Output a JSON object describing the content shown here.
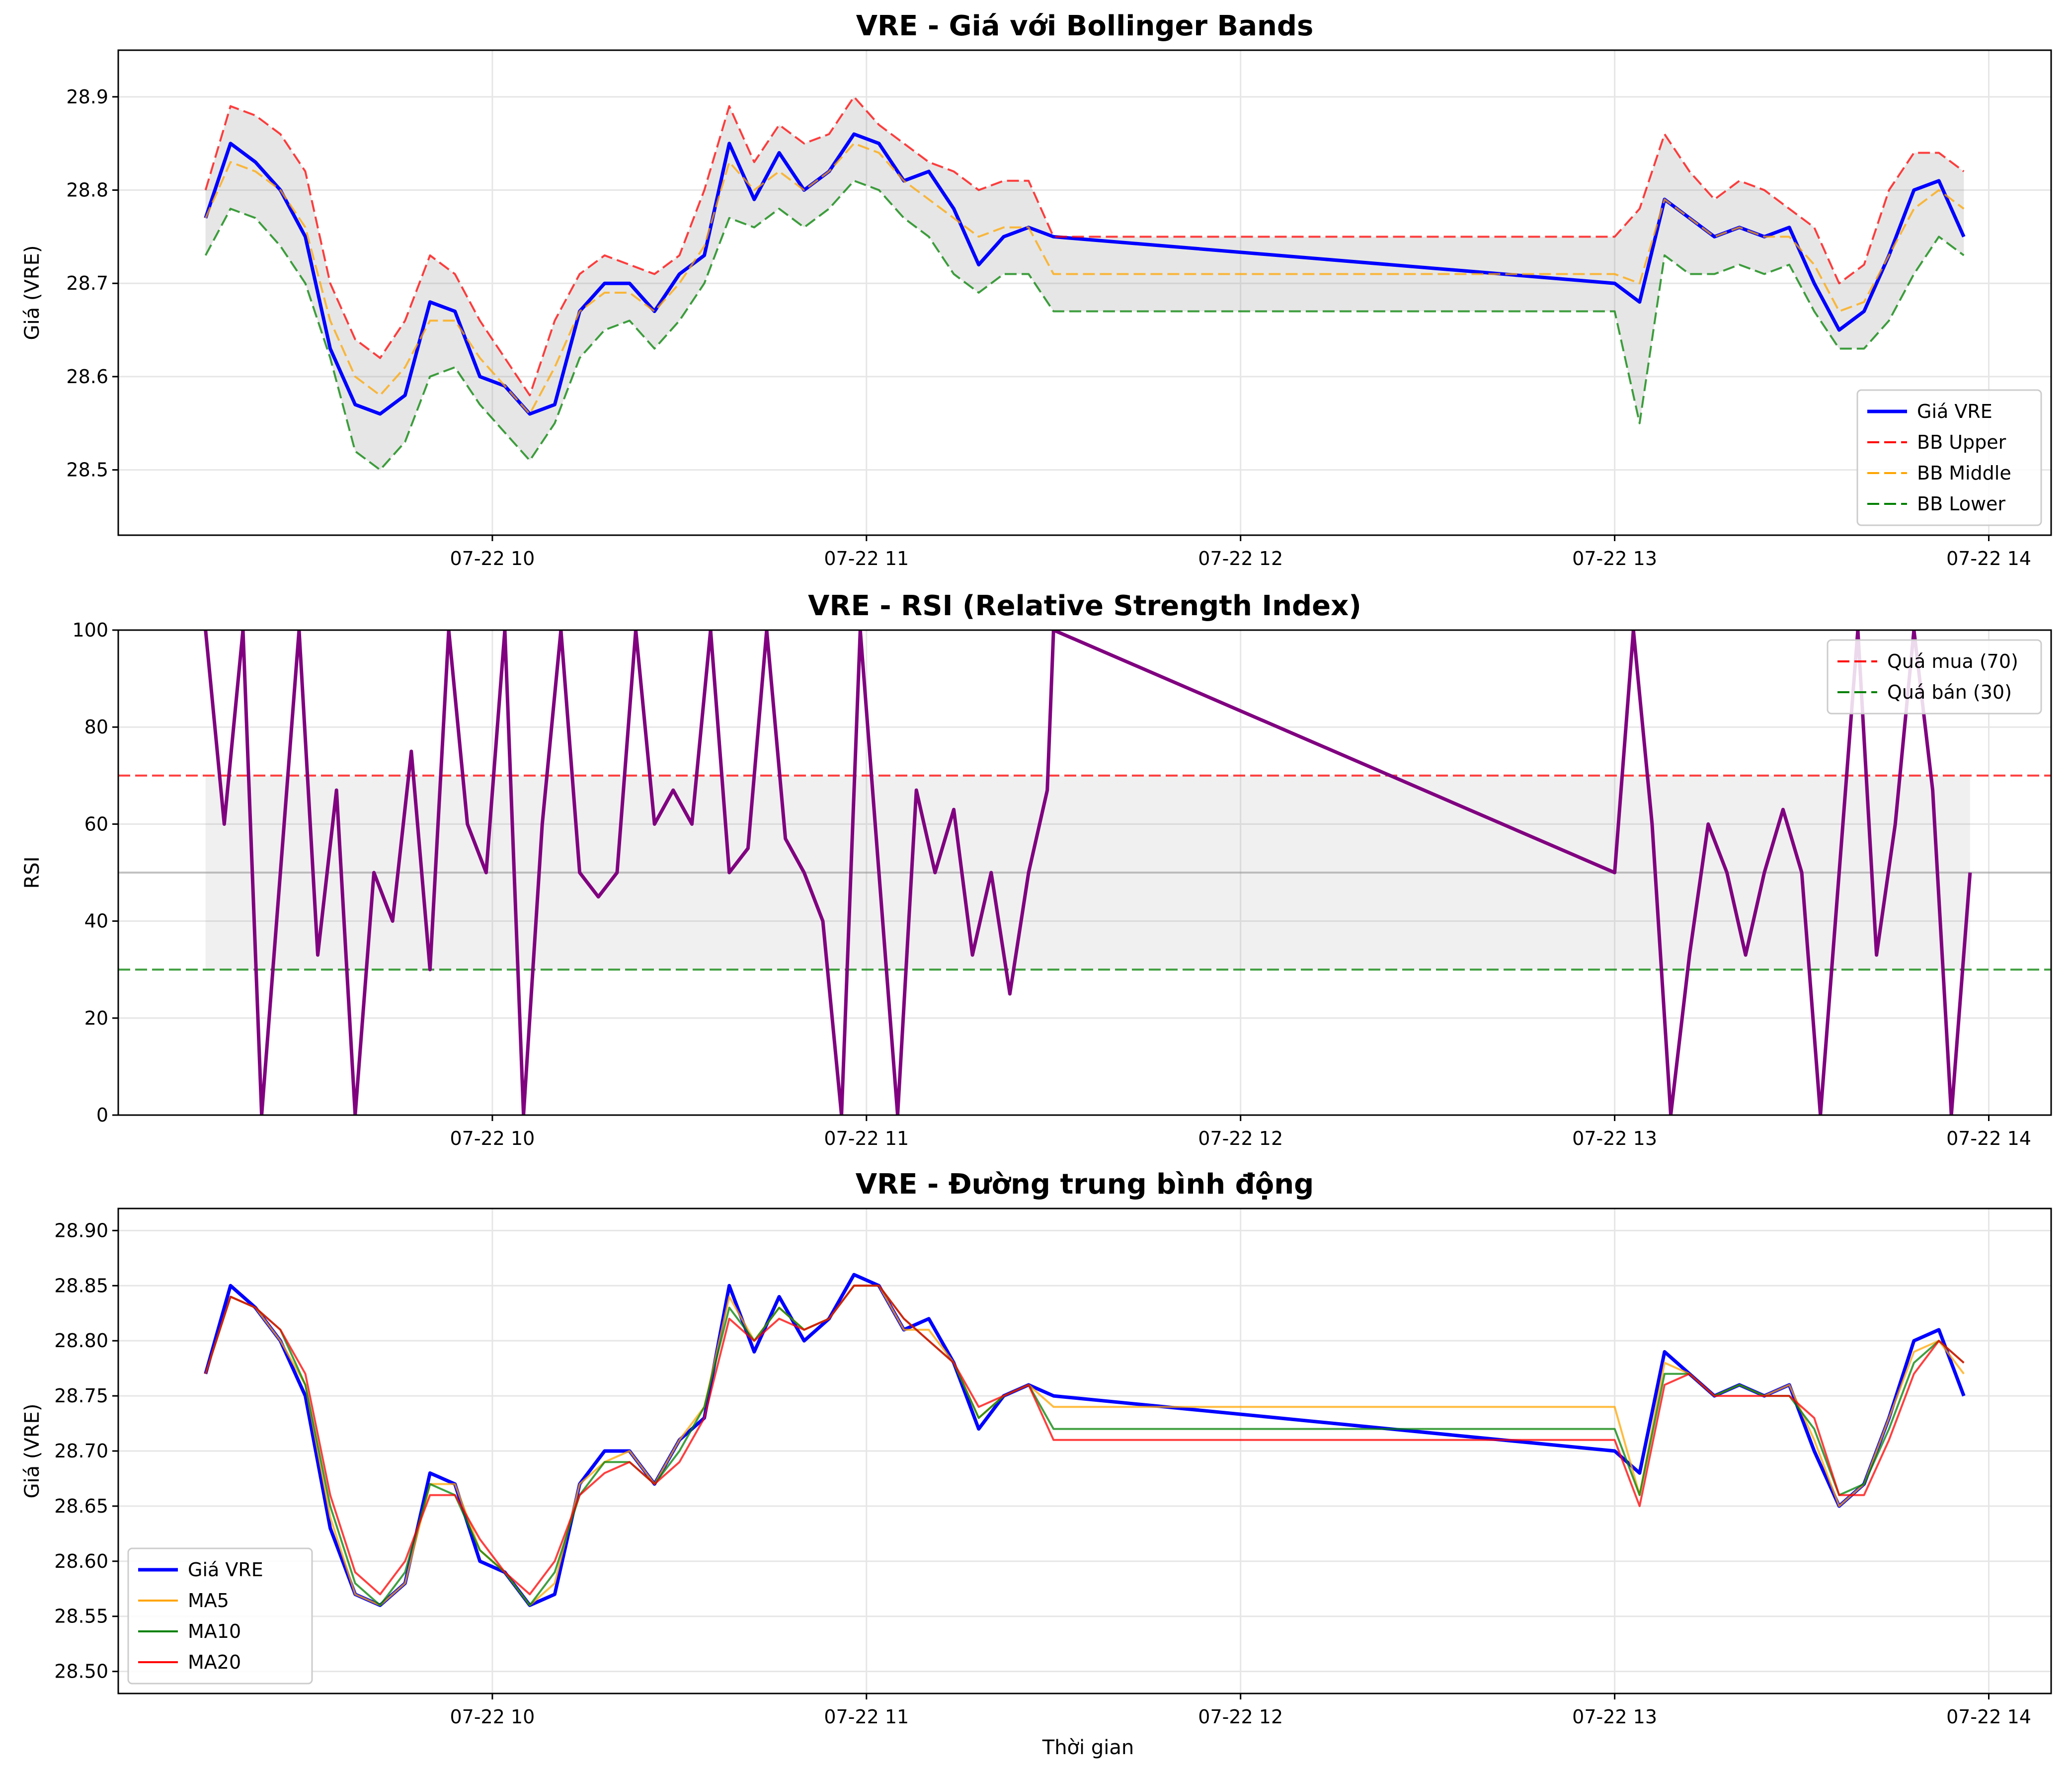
{
  "figure": {
    "xlabel": "Thời gian"
  },
  "chart_data": [
    {
      "type": "line",
      "title": "VRE - Giá với Bollinger Bands",
      "xlabel": "",
      "ylabel": "Giá (VRE)",
      "xlim": [
        "07-22 09:00",
        "07-22 14:10"
      ],
      "ylim": [
        28.43,
        28.95
      ],
      "x_ticks": [
        "07-22 10",
        "07-22 11",
        "07-22 12",
        "07-22 13",
        "07-22 14"
      ],
      "y_ticks": [
        28.5,
        28.6,
        28.7,
        28.8,
        28.9
      ],
      "grid": true,
      "legend_position": "lower right",
      "band_fill": "between BB Upper and BB Lower, gray",
      "x": [
        "09:14",
        "09:18",
        "09:22",
        "09:26",
        "09:30",
        "09:34",
        "09:38",
        "09:42",
        "09:46",
        "09:50",
        "09:54",
        "09:58",
        "10:02",
        "10:06",
        "10:10",
        "10:14",
        "10:18",
        "10:22",
        "10:26",
        "10:30",
        "10:34",
        "10:38",
        "10:42",
        "10:46",
        "10:50",
        "10:54",
        "10:58",
        "11:02",
        "11:06",
        "11:10",
        "11:14",
        "11:18",
        "11:22",
        "11:26",
        "11:30",
        "13:00",
        "13:04",
        "13:08",
        "13:12",
        "13:16",
        "13:20",
        "13:24",
        "13:28",
        "13:32",
        "13:36",
        "13:40",
        "13:44",
        "13:48",
        "13:52",
        "13:56"
      ],
      "series": [
        {
          "name": "Giá VRE",
          "color": "#0000ff",
          "style": "solid",
          "values": [
            28.77,
            28.85,
            28.83,
            28.8,
            28.75,
            28.63,
            28.57,
            28.56,
            28.58,
            28.68,
            28.67,
            28.6,
            28.59,
            28.56,
            28.57,
            28.67,
            28.7,
            28.7,
            28.67,
            28.71,
            28.73,
            28.85,
            28.79,
            28.84,
            28.8,
            28.82,
            28.86,
            28.85,
            28.81,
            28.82,
            28.78,
            28.72,
            28.75,
            28.76,
            28.75,
            28.7,
            28.68,
            28.79,
            28.77,
            28.75,
            28.76,
            28.75,
            28.76,
            28.7,
            28.65,
            28.67,
            28.73,
            28.8,
            28.81,
            28.75
          ]
        },
        {
          "name": "BB Upper",
          "color": "#ff0000",
          "style": "dashed",
          "values": [
            28.8,
            28.89,
            28.88,
            28.86,
            28.82,
            28.7,
            28.64,
            28.62,
            28.66,
            28.73,
            28.71,
            28.66,
            28.62,
            28.58,
            28.66,
            28.71,
            28.73,
            28.72,
            28.71,
            28.73,
            28.8,
            28.89,
            28.83,
            28.87,
            28.85,
            28.86,
            28.9,
            28.87,
            28.85,
            28.83,
            28.82,
            28.8,
            28.81,
            28.81,
            28.75,
            28.75,
            28.78,
            28.86,
            28.82,
            28.79,
            28.81,
            28.8,
            28.78,
            28.76,
            28.7,
            28.72,
            28.8,
            28.84,
            28.84,
            28.82
          ]
        },
        {
          "name": "BB Middle",
          "color": "#ffa500",
          "style": "dashed",
          "values": [
            28.77,
            28.83,
            28.82,
            28.8,
            28.76,
            28.66,
            28.6,
            28.58,
            28.61,
            28.66,
            28.66,
            28.62,
            28.59,
            28.56,
            28.61,
            28.67,
            28.69,
            28.69,
            28.67,
            28.7,
            28.74,
            28.83,
            28.8,
            28.82,
            28.8,
            28.82,
            28.85,
            28.84,
            28.81,
            28.79,
            28.77,
            28.75,
            28.76,
            28.76,
            28.71,
            28.71,
            28.7,
            28.79,
            28.77,
            28.75,
            28.76,
            28.75,
            28.75,
            28.72,
            28.67,
            28.68,
            28.73,
            28.78,
            28.8,
            28.78
          ]
        },
        {
          "name": "BB Lower",
          "color": "#008000",
          "style": "dashed",
          "values": [
            28.73,
            28.78,
            28.77,
            28.74,
            28.7,
            28.62,
            28.52,
            28.5,
            28.53,
            28.6,
            28.61,
            28.57,
            28.54,
            28.51,
            28.55,
            28.62,
            28.65,
            28.66,
            28.63,
            28.66,
            28.7,
            28.77,
            28.76,
            28.78,
            28.76,
            28.78,
            28.81,
            28.8,
            28.77,
            28.75,
            28.71,
            28.69,
            28.71,
            28.71,
            28.67,
            28.67,
            28.55,
            28.73,
            28.71,
            28.71,
            28.72,
            28.71,
            28.72,
            28.67,
            28.63,
            28.63,
            28.66,
            28.71,
            28.75,
            28.73
          ]
        }
      ]
    },
    {
      "type": "line",
      "title": "VRE - RSI (Relative Strength Index)",
      "xlabel": "",
      "ylabel": "RSI",
      "xlim": [
        "07-22 09:00",
        "07-22 14:10"
      ],
      "ylim": [
        0,
        100
      ],
      "x_ticks": [
        "07-22 10",
        "07-22 11",
        "07-22 12",
        "07-22 13",
        "07-22 14"
      ],
      "y_ticks": [
        0,
        20,
        40,
        60,
        80,
        100
      ],
      "grid": true,
      "legend_position": "upper right",
      "reference_lines": [
        {
          "name": "Quá mua (70)",
          "value": 70,
          "color": "#ff0000",
          "style": "dashed"
        },
        {
          "name": "Quá bán (30)",
          "value": 30,
          "color": "#008000",
          "style": "dashed"
        },
        {
          "value": 50,
          "color": "#999999",
          "style": "solid"
        }
      ],
      "shaded_range": [
        30,
        70
      ],
      "x": [
        "09:14",
        "09:17",
        "09:20",
        "09:23",
        "09:26",
        "09:29",
        "09:32",
        "09:35",
        "09:38",
        "09:41",
        "09:44",
        "09:47",
        "09:50",
        "09:53",
        "09:56",
        "09:59",
        "10:02",
        "10:05",
        "10:08",
        "10:11",
        "10:14",
        "10:17",
        "10:20",
        "10:23",
        "10:26",
        "10:29",
        "10:32",
        "10:35",
        "10:38",
        "10:41",
        "10:44",
        "10:47",
        "10:50",
        "10:53",
        "10:56",
        "10:59",
        "11:02",
        "11:05",
        "11:08",
        "11:11",
        "11:14",
        "11:17",
        "11:20",
        "11:23",
        "11:26",
        "11:29",
        "11:30",
        "13:00",
        "13:03",
        "13:06",
        "13:09",
        "13:12",
        "13:15",
        "13:18",
        "13:21",
        "13:24",
        "13:27",
        "13:30",
        "13:33",
        "13:36",
        "13:39",
        "13:42",
        "13:45",
        "13:48",
        "13:51",
        "13:54",
        "13:57"
      ],
      "series": [
        {
          "name": "RSI",
          "color": "#800080",
          "style": "solid",
          "values": [
            100,
            60,
            100,
            0,
            50,
            100,
            33,
            67,
            0,
            50,
            40,
            75,
            30,
            100,
            60,
            50,
            100,
            0,
            60,
            100,
            50,
            45,
            50,
            100,
            60,
            67,
            60,
            100,
            50,
            55,
            100,
            57,
            50,
            40,
            0,
            100,
            50,
            0,
            67,
            50,
            63,
            33,
            50,
            25,
            50,
            67,
            100,
            50,
            100,
            60,
            0,
            33,
            60,
            50,
            33,
            50,
            63,
            50,
            0,
            50,
            100,
            33,
            60,
            100,
            67,
            0,
            50
          ]
        }
      ]
    },
    {
      "type": "line",
      "title": "VRE - Đường trung bình động",
      "xlabel": "Thời gian",
      "ylabel": "Giá (VRE)",
      "xlim": [
        "07-22 09:00",
        "07-22 14:10"
      ],
      "ylim": [
        28.48,
        28.92
      ],
      "x_ticks": [
        "07-22 10",
        "07-22 11",
        "07-22 12",
        "07-22 13",
        "07-22 14"
      ],
      "y_ticks": [
        28.5,
        28.55,
        28.6,
        28.65,
        28.7,
        28.75,
        28.8,
        28.85,
        28.9
      ],
      "grid": true,
      "legend_position": "lower left",
      "x": [
        "09:14",
        "09:18",
        "09:22",
        "09:26",
        "09:30",
        "09:34",
        "09:38",
        "09:42",
        "09:46",
        "09:50",
        "09:54",
        "09:58",
        "10:02",
        "10:06",
        "10:10",
        "10:14",
        "10:18",
        "10:22",
        "10:26",
        "10:30",
        "10:34",
        "10:38",
        "10:42",
        "10:46",
        "10:50",
        "10:54",
        "10:58",
        "11:02",
        "11:06",
        "11:10",
        "11:14",
        "11:18",
        "11:22",
        "11:26",
        "11:30",
        "13:00",
        "13:04",
        "13:08",
        "13:12",
        "13:16",
        "13:20",
        "13:24",
        "13:28",
        "13:32",
        "13:36",
        "13:40",
        "13:44",
        "13:48",
        "13:52",
        "13:56"
      ],
      "series": [
        {
          "name": "Giá VRE",
          "color": "#0000ff",
          "style": "solid",
          "values": [
            28.77,
            28.85,
            28.83,
            28.8,
            28.75,
            28.63,
            28.57,
            28.56,
            28.58,
            28.68,
            28.67,
            28.6,
            28.59,
            28.56,
            28.57,
            28.67,
            28.7,
            28.7,
            28.67,
            28.71,
            28.73,
            28.85,
            28.79,
            28.84,
            28.8,
            28.82,
            28.86,
            28.85,
            28.81,
            28.82,
            28.78,
            28.72,
            28.75,
            28.76,
            28.75,
            28.7,
            28.68,
            28.79,
            28.77,
            28.75,
            28.76,
            28.75,
            28.76,
            28.7,
            28.65,
            28.67,
            28.73,
            28.8,
            28.81,
            28.75
          ]
        },
        {
          "name": "MA5",
          "color": "#ffa500",
          "style": "solid",
          "values": [
            28.77,
            28.84,
            28.83,
            28.8,
            28.76,
            28.64,
            28.57,
            28.56,
            28.58,
            28.67,
            28.67,
            28.61,
            28.59,
            28.56,
            28.58,
            28.67,
            28.69,
            28.7,
            28.67,
            28.71,
            28.74,
            28.84,
            28.8,
            28.83,
            28.81,
            28.82,
            28.85,
            28.85,
            28.81,
            28.81,
            28.78,
            28.73,
            28.75,
            28.76,
            28.74,
            28.74,
            28.66,
            28.78,
            28.77,
            28.75,
            28.76,
            28.75,
            28.76,
            28.71,
            28.65,
            28.67,
            28.73,
            28.79,
            28.8,
            28.77
          ]
        },
        {
          "name": "MA10",
          "color": "#008000",
          "style": "solid",
          "values": [
            28.77,
            28.84,
            28.83,
            28.81,
            28.76,
            28.65,
            28.58,
            28.56,
            28.59,
            28.67,
            28.66,
            28.61,
            28.59,
            28.56,
            28.59,
            28.66,
            28.69,
            28.69,
            28.67,
            28.7,
            28.74,
            28.83,
            28.8,
            28.83,
            28.81,
            28.82,
            28.85,
            28.85,
            28.82,
            28.8,
            28.78,
            28.73,
            28.75,
            28.76,
            28.72,
            28.72,
            28.66,
            28.77,
            28.77,
            28.75,
            28.76,
            28.75,
            28.75,
            28.72,
            28.66,
            28.67,
            28.72,
            28.78,
            28.8,
            28.78
          ]
        },
        {
          "name": "MA20",
          "color": "#ff0000",
          "style": "solid",
          "values": [
            28.77,
            28.84,
            28.83,
            28.81,
            28.77,
            28.66,
            28.59,
            28.57,
            28.6,
            28.66,
            28.66,
            28.62,
            28.59,
            28.57,
            28.6,
            28.66,
            28.68,
            28.69,
            28.67,
            28.69,
            28.73,
            28.82,
            28.8,
            28.82,
            28.81,
            28.82,
            28.85,
            28.85,
            28.82,
            28.8,
            28.78,
            28.74,
            28.75,
            28.76,
            28.71,
            28.71,
            28.65,
            28.76,
            28.77,
            28.75,
            28.75,
            28.75,
            28.75,
            28.73,
            28.66,
            28.66,
            28.71,
            28.77,
            28.8,
            28.78
          ]
        }
      ]
    }
  ]
}
